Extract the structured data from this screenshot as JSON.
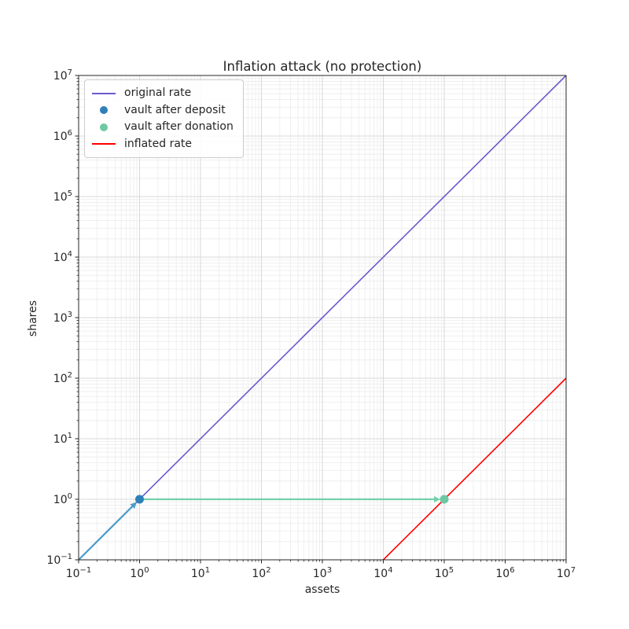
{
  "figure": {
    "title": "Inflation attack (no protection)",
    "xlabel": "assets",
    "ylabel": "shares"
  },
  "legend": {
    "items": [
      {
        "label": "original rate",
        "marker": "line",
        "color": "#6a5acd"
      },
      {
        "label": "vault after deposit",
        "marker": "dot",
        "color": "#2f80b9"
      },
      {
        "label": "vault after donation",
        "marker": "dot",
        "color": "#6cc9a3"
      },
      {
        "label": "inflated rate",
        "marker": "line",
        "color": "#ff0000"
      }
    ]
  },
  "chart_data": {
    "type": "line",
    "title": "Inflation attack (no protection)",
    "xlabel": "assets",
    "ylabel": "shares",
    "x_scale": "log",
    "y_scale": "log",
    "xlim": [
      0.1,
      10000000
    ],
    "ylim": [
      0.1,
      10000000
    ],
    "x_tick_exponents": [
      -1,
      0,
      1,
      2,
      3,
      4,
      5,
      6,
      7
    ],
    "y_tick_exponents": [
      -1,
      0,
      1,
      2,
      3,
      4,
      5,
      6,
      7
    ],
    "grid": {
      "major": true,
      "minor": true,
      "major_color": "#d9d9d9",
      "minor_color": "#ececec"
    },
    "axis_color": "#262626",
    "series": [
      {
        "name": "original rate",
        "kind": "line",
        "color": "#6a5acd",
        "width": 1.6,
        "points": [
          [
            0.1,
            0.1
          ],
          [
            10000000,
            10000000
          ]
        ]
      },
      {
        "name": "inflated rate",
        "kind": "line",
        "color": "#ff0000",
        "width": 1.6,
        "points": [
          [
            10000,
            0.1
          ],
          [
            10000000,
            100
          ]
        ]
      },
      {
        "name": "deposit arrow",
        "kind": "arrow",
        "color": "#4a9bcc",
        "width": 2.2,
        "from": [
          0.1,
          0.1
        ],
        "to": [
          1,
          1
        ]
      },
      {
        "name": "donation arrow",
        "kind": "arrow",
        "color": "#74cfab",
        "width": 2.2,
        "from": [
          1,
          1
        ],
        "to": [
          100000,
          1
        ]
      },
      {
        "name": "vault after deposit",
        "kind": "scatter",
        "color": "#2f80b9",
        "radius": 5.5,
        "points": [
          [
            1,
            1
          ]
        ]
      },
      {
        "name": "vault after donation",
        "kind": "scatter",
        "color": "#6cc9a3",
        "radius": 5.5,
        "points": [
          [
            100000,
            1
          ]
        ]
      }
    ]
  }
}
